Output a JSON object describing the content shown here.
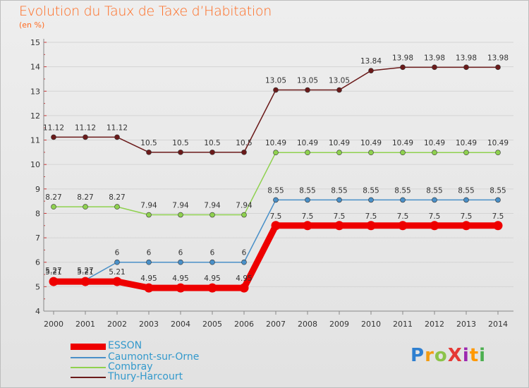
{
  "title": "Evolution du Taux de Taxe d’Habitation",
  "unit": "(en %)",
  "logo": {
    "text": "ProXiti",
    "colors": [
      "#2e7fd0",
      "#f39c12",
      "#8bc34a",
      "#e53935",
      "#9c27b0",
      "#ff9800",
      "#4caf50"
    ]
  },
  "chart_data": {
    "type": "line",
    "title": "Evolution du Taux de Taxe d’Habitation",
    "ylabel": "(en %)",
    "xlabel": "",
    "x": [
      "2000",
      "2001",
      "2002",
      "2003",
      "2004",
      "2005",
      "2006",
      "2007",
      "2008",
      "2009",
      "2010",
      "2011",
      "2012",
      "2013",
      "2014"
    ],
    "ylim": [
      4,
      15
    ],
    "yticks": [
      "4",
      "5",
      "6",
      "7",
      "8",
      "9",
      "10",
      "11",
      "12",
      "13",
      "14",
      "15"
    ],
    "legend_position": "bottom-left",
    "series": [
      {
        "name": "Thury-Harcourt",
        "color": "#6b1a1a",
        "values": [
          11.12,
          11.12,
          11.12,
          10.5,
          10.5,
          10.5,
          10.5,
          13.05,
          13.05,
          13.05,
          13.84,
          13.98,
          13.98,
          13.98,
          13.98
        ],
        "labels": [
          "11.12",
          "11.12",
          "11.12",
          "10.5",
          "10.5",
          "10.5",
          "10.5",
          "13.05",
          "13.05",
          "13.05",
          "13.84",
          "13.98",
          "13.98",
          "13.98",
          "13.98"
        ]
      },
      {
        "name": "Combray",
        "color": "#8fd14f",
        "values": [
          8.27,
          8.27,
          8.27,
          7.94,
          7.94,
          7.94,
          7.94,
          10.49,
          10.49,
          10.49,
          10.49,
          10.49,
          10.49,
          10.49,
          10.49
        ],
        "labels": [
          "8.27",
          "8.27",
          "8.27",
          "7.94",
          "7.94",
          "7.94",
          "7.94",
          "10.49",
          "10.49",
          "10.49",
          "10.49",
          "10.49",
          "10.49",
          "10.49",
          "10.49"
        ]
      },
      {
        "name": "Caumont-sur-Orne",
        "color": "#4a90c8",
        "values": [
          5.27,
          5.27,
          6,
          6,
          6,
          6,
          6,
          8.55,
          8.55,
          8.55,
          8.55,
          8.55,
          8.55,
          8.55,
          8.55
        ],
        "labels": [
          "5.27",
          "5.27",
          "6",
          "6",
          "6",
          "6",
          "6",
          "8.55",
          "8.55",
          "8.55",
          "8.55",
          "8.55",
          "8.55",
          "8.55",
          "8.55"
        ]
      },
      {
        "name": "ESSON",
        "color": "#ee0000",
        "values": [
          5.21,
          5.21,
          5.21,
          4.95,
          4.95,
          4.95,
          4.95,
          7.5,
          7.5,
          7.5,
          7.5,
          7.5,
          7.5,
          7.5,
          7.5
        ],
        "labels": [
          "5.21",
          "5.21",
          "5.21",
          "4.95",
          "4.95",
          "4.95",
          "4.95",
          "7.5",
          "7.5",
          "7.5",
          "7.5",
          "7.5",
          "7.5",
          "7.5",
          "7.5"
        ]
      }
    ]
  },
  "legend": [
    {
      "label": "ESSON",
      "color": "#ee0000"
    },
    {
      "label": "Caumont-sur-Orne",
      "color": "#4a90c8"
    },
    {
      "label": "Combray",
      "color": "#8fd14f"
    },
    {
      "label": "Thury-Harcourt",
      "color": "#6b1a1a"
    }
  ]
}
